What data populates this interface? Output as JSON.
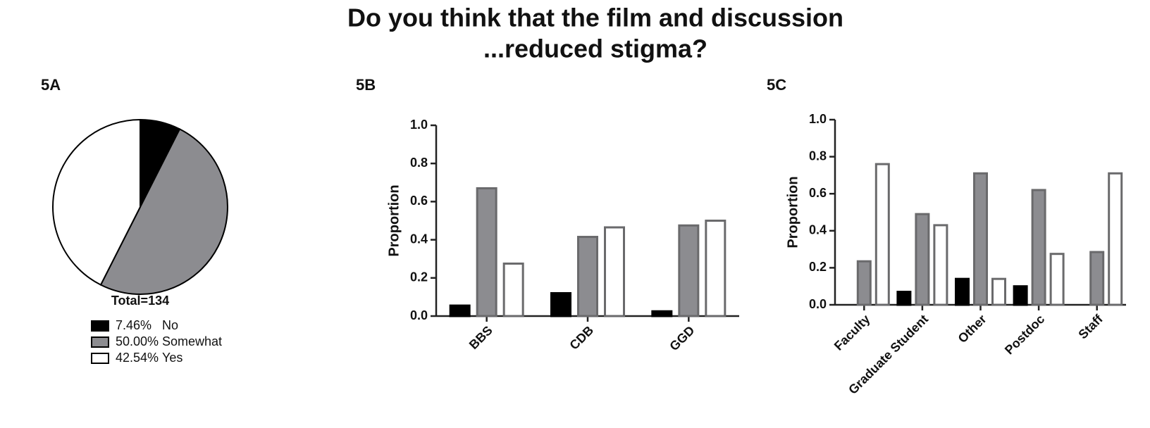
{
  "title": [
    "Do you think that the film and discussion",
    "...reduced stigma?"
  ],
  "chart_data": [
    {
      "type": "pie",
      "panel": "5A",
      "note": "Total=134",
      "categories": [
        "No",
        "Somewhat",
        "Yes"
      ],
      "values": [
        7.46,
        50,
        42.54
      ],
      "value_labels": [
        "7.46%",
        "50.00%",
        "42.54%"
      ],
      "colors": [
        "#000000",
        "#8c8c90",
        "#ffffff"
      ]
    },
    {
      "type": "bar",
      "panel": "5B",
      "ylabel": "Proportion",
      "categories": [
        "BBS",
        "CDB",
        "GGD"
      ],
      "series": [
        {
          "color": "#000000",
          "values": [
            0.055,
            0.12,
            0.025
          ]
        },
        {
          "color": "#8c8c90",
          "values": [
            0.67,
            0.415,
            0.475
          ]
        },
        {
          "color": "#ffffff",
          "values": [
            0.275,
            0.465,
            0.5
          ]
        }
      ],
      "ylim": [
        0,
        1
      ],
      "yticks": [
        {
          "value": 0,
          "label": "0.0"
        },
        0.2,
        0.4,
        0.6,
        0.8,
        {
          "value": 1,
          "label": "1.0"
        }
      ]
    },
    {
      "type": "bar",
      "panel": "5C",
      "ylabel": "Proportion",
      "categories": [
        "Faculty",
        "Graduate Student",
        "Other",
        "Postdoc",
        "Staff"
      ],
      "series": [
        {
          "color": "#000000",
          "values": [
            0,
            0.07,
            0.14,
            0.1,
            0
          ]
        },
        {
          "color": "#8c8c90",
          "values": [
            0.235,
            0.49,
            0.71,
            0.62,
            0.285
          ]
        },
        {
          "color": "#ffffff",
          "values": [
            0.76,
            0.43,
            0.14,
            0.275,
            0.71
          ]
        }
      ],
      "ylim": [
        0,
        1
      ],
      "yticks": [
        {
          "value": 0,
          "label": "0.0"
        },
        0.2,
        0.4,
        0.6,
        0.8,
        {
          "value": 1,
          "label": "1.0"
        }
      ]
    }
  ]
}
